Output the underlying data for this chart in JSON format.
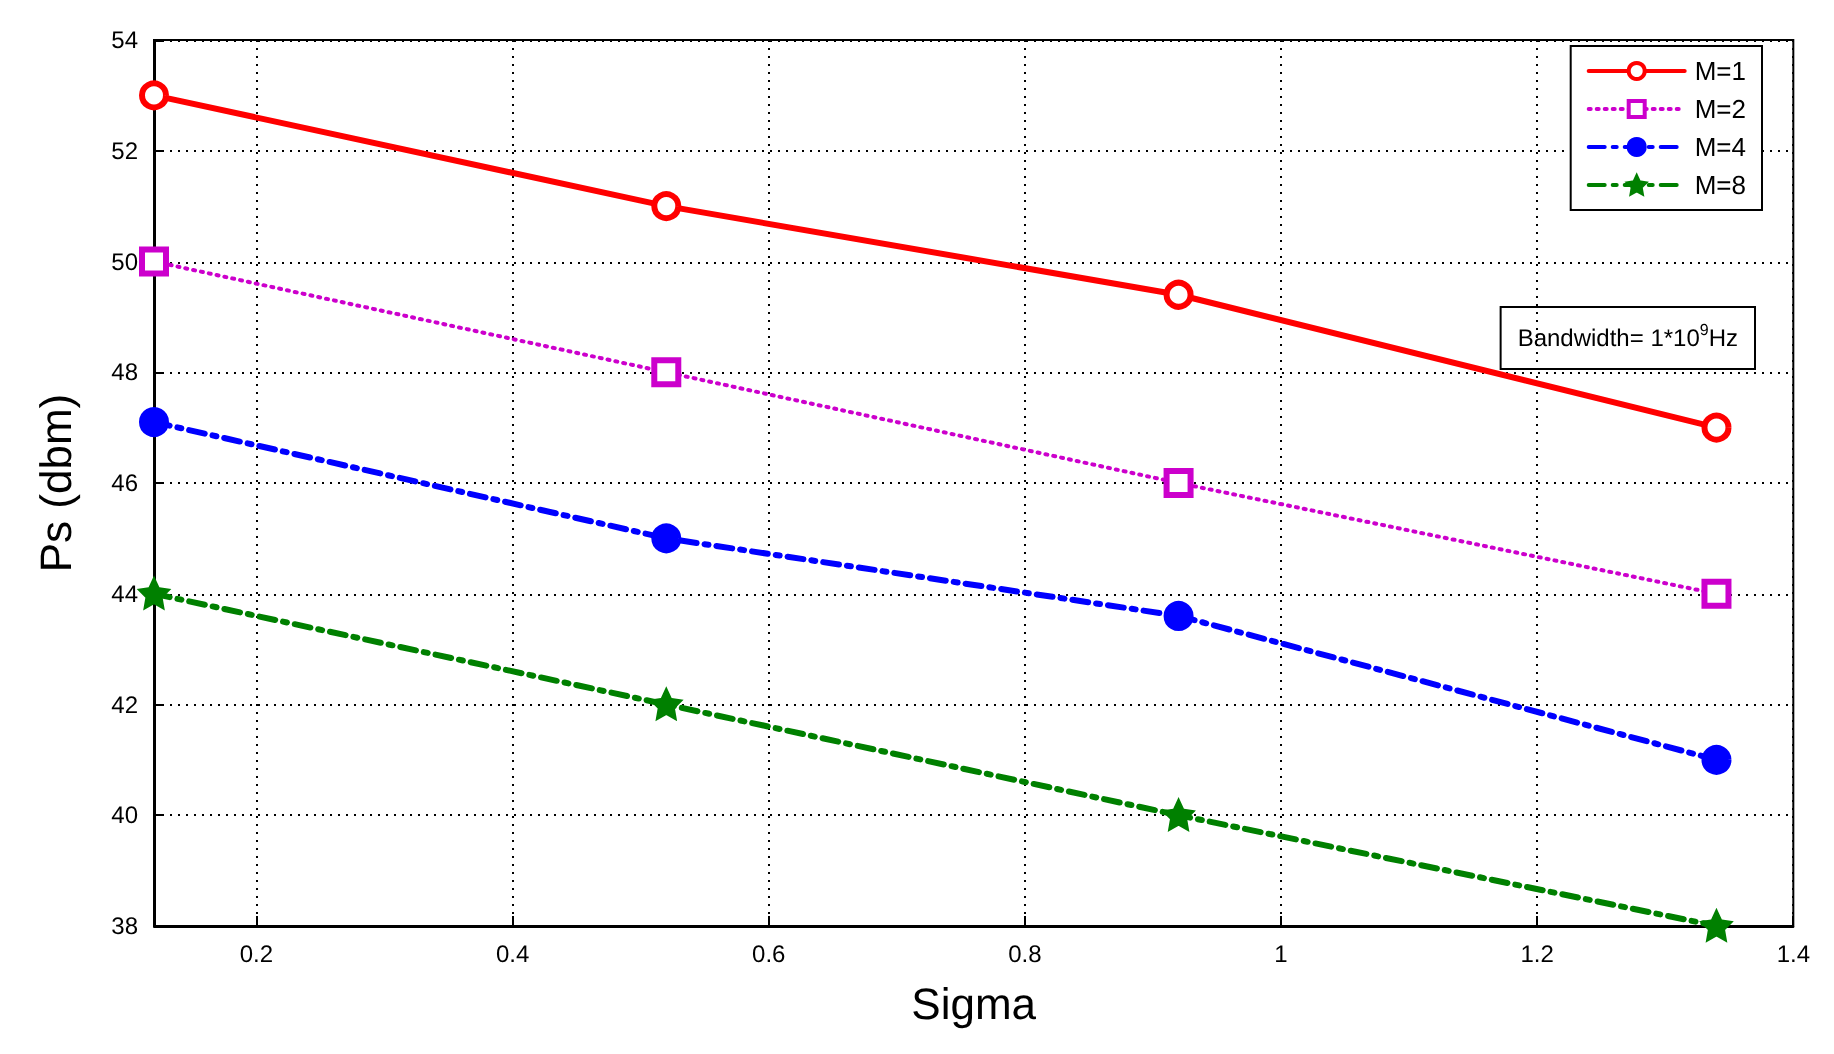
{
  "chart_data": {
    "type": "line",
    "xlabel": "Sigma",
    "ylabel": "Ps (dbm)",
    "x": [
      0.12,
      0.52,
      0.92,
      1.34
    ],
    "series": [
      {
        "name": "M=1",
        "color": "#ff0000",
        "values": [
          53,
          51,
          49.4,
          47
        ],
        "marker": "circle",
        "line_style": "solid"
      },
      {
        "name": "M=2",
        "color": "#cc00cc",
        "values": [
          50,
          48,
          46,
          44
        ],
        "marker": "square",
        "line_style": "dotted"
      },
      {
        "name": "M=4",
        "color": "#0000ff",
        "values": [
          47.1,
          45,
          43.6,
          41
        ],
        "marker": "circle",
        "line_style": "dashed"
      },
      {
        "name": "M=8",
        "color": "#008000",
        "values": [
          44,
          42,
          40,
          38
        ],
        "marker": "star",
        "line_style": "dashed"
      }
    ],
    "xlim": [
      0.12,
      1.4
    ],
    "xticks": [
      0.2,
      0.4,
      0.6,
      0.8,
      1,
      1.2,
      1.4
    ],
    "ylim": [
      38,
      54
    ],
    "yticks": [
      38,
      40,
      42,
      44,
      46,
      48,
      50,
      52,
      54
    ],
    "grid": true,
    "legend": "top right",
    "annotations": [
      "Bandwidth= 1*10$^{9}$Hz"
    ]
  }
}
